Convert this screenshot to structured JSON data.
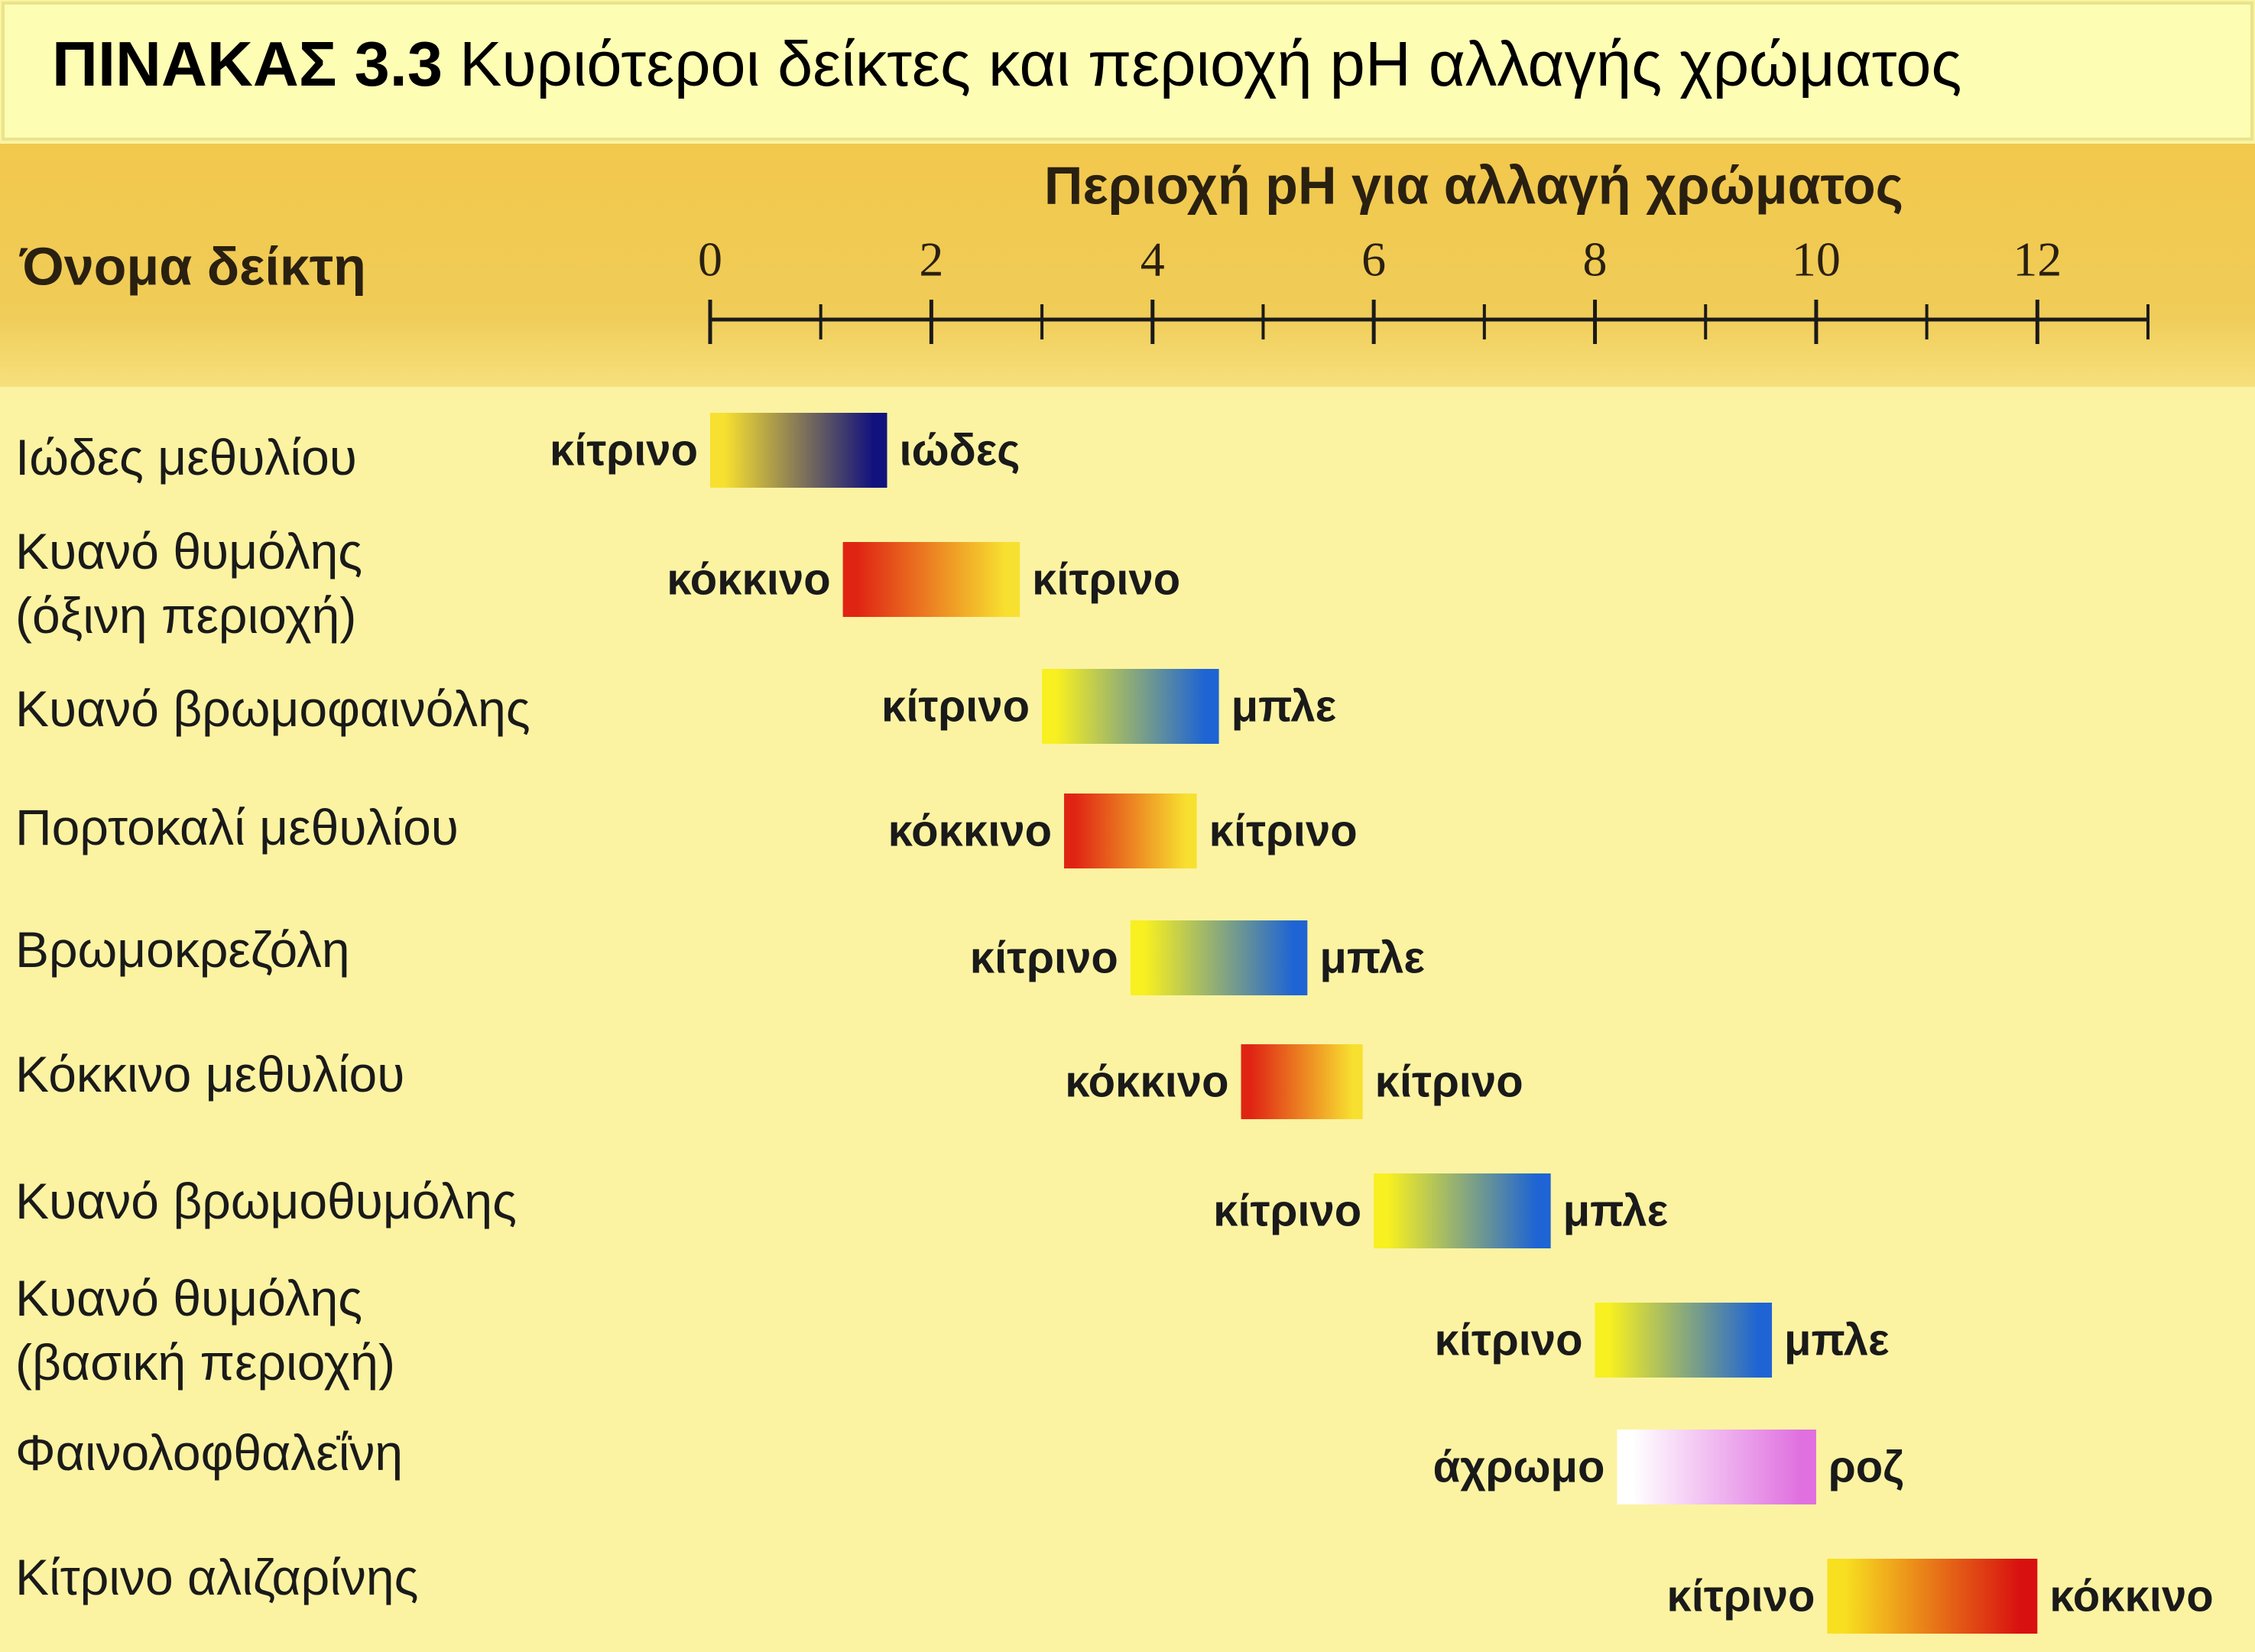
{
  "chart_data": {
    "type": "range",
    "title_label": "ΠΙΝΑΚΑΣ 3.3",
    "title": "Κυριότεροι δείκτες και περιοχή pH αλλαγής χρώματος",
    "category_label": "Όνομα δείκτη",
    "x_label": "Περιοχή pH για αλλαγή χρώματος",
    "xlim": [
      0,
      13
    ],
    "xticks": [
      0,
      2,
      4,
      6,
      8,
      10,
      12
    ],
    "xminorticks": [
      1,
      3,
      5,
      7,
      9,
      11,
      13
    ],
    "categories": [
      "Ιώδες μεθυλίου",
      "Κυανό θυμόλης\n(όξινη περιοχή)",
      "Κυανό βρωμοφαινόλης",
      "Πορτοκαλί μεθυλίου",
      "Βρωμοκρεζόλη",
      "Κόκκινο μεθυλίου",
      "Κυανό βρωμοθυμόλης",
      "Κυανό θυμόλης\n(βασική περιοχή)",
      "Φαινολοφθαλεΐνη",
      "Κίτρινο αλιζαρίνης"
    ],
    "low": [
      0,
      1.2,
      3.0,
      3.2,
      3.8,
      4.8,
      6.0,
      8.0,
      8.2,
      10.1
    ],
    "high": [
      1.6,
      2.8,
      4.6,
      4.4,
      5.4,
      5.9,
      7.6,
      9.6,
      10.0,
      12.0
    ],
    "low_color_labels": [
      "κίτρινο",
      "κόκκινο",
      "κίτρινο",
      "κόκκινο",
      "κίτρινο",
      "κόκκινο",
      "κίτρινο",
      "κίτρινο",
      "άχρωμο",
      "κίτρινο"
    ],
    "high_color_labels": [
      "ιώδες",
      "κίτρινο",
      "μπλε",
      "κίτρινο",
      "μπλε",
      "κίτρινο",
      "μπλε",
      "μπλε",
      "ροζ",
      "κόκκινο"
    ],
    "low_colors": [
      "#f8e030",
      "#e02414",
      "#f8f020",
      "#e02414",
      "#f8f020",
      "#e02414",
      "#f8f020",
      "#f8f020",
      "#ffffff",
      "#f8e020"
    ],
    "high_colors": [
      "#12127e",
      "#f8e030",
      "#1e64d4",
      "#f8e030",
      "#1e64d4",
      "#f8e030",
      "#1e64d4",
      "#1e64d4",
      "#e070e0",
      "#d81010"
    ]
  }
}
